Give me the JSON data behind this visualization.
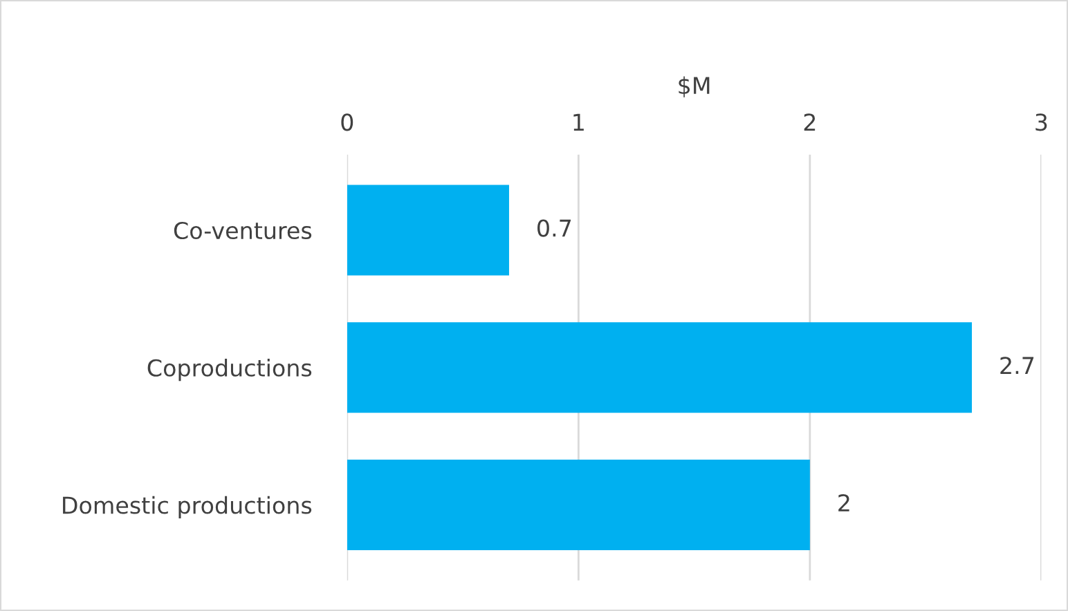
{
  "chart_data": {
    "type": "bar",
    "orientation": "horizontal",
    "xlabel": "$M",
    "categories": [
      "Co-ventures",
      "Coproductions",
      "Domestic productions"
    ],
    "values": [
      0.7,
      2.7,
      2
    ],
    "color": "#00b0f0",
    "xlim": [
      0,
      3
    ],
    "xticks": [
      0,
      1,
      2,
      3
    ],
    "grid": "x",
    "data_labels": true
  }
}
